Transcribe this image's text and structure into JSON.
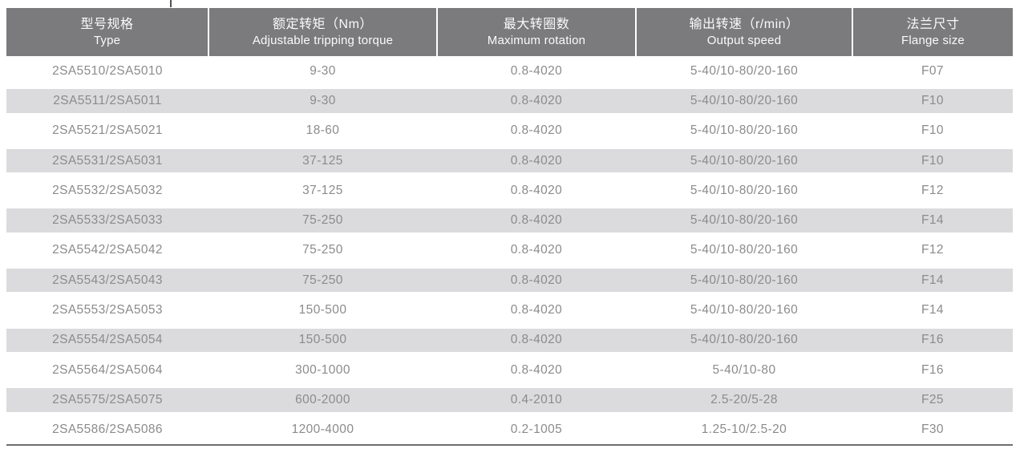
{
  "page": {
    "background": "#ffffff"
  },
  "artifact": {
    "description": "cropped remnant of text above table"
  },
  "table": {
    "columns": [
      {
        "key": "type",
        "zh": "型号规格",
        "en": "Type"
      },
      {
        "key": "torque",
        "zh": "额定转矩（Nm）",
        "en": "Adjustable tripping torque"
      },
      {
        "key": "rotation",
        "zh": "最大转圈数",
        "en": "Maximum rotation"
      },
      {
        "key": "speed",
        "zh": "输出转速（r/min）",
        "en": "Output speed"
      },
      {
        "key": "flange",
        "zh": "法兰尺寸",
        "en": "Flange size"
      }
    ],
    "rows": [
      [
        "2SA5510/2SA5010",
        "9-30",
        "0.8-4020",
        "5-40/10-80/20-160",
        "F07"
      ],
      [
        "2SA5511/2SA5011",
        "9-30",
        "0.8-4020",
        "5-40/10-80/20-160",
        "F10"
      ],
      [
        "2SA5521/2SA5021",
        "18-60",
        "0.8-4020",
        "5-40/10-80/20-160",
        "F10"
      ],
      [
        "2SA5531/2SA5031",
        "37-125",
        "0.8-4020",
        "5-40/10-80/20-160",
        "F10"
      ],
      [
        "2SA5532/2SA5032",
        "37-125",
        "0.8-4020",
        "5-40/10-80/20-160",
        "F12"
      ],
      [
        "2SA5533/2SA5033",
        "75-250",
        "0.8-4020",
        "5-40/10-80/20-160",
        "F14"
      ],
      [
        "2SA5542/2SA5042",
        "75-250",
        "0.8-4020",
        "5-40/10-80/20-160",
        "F12"
      ],
      [
        "2SA5543/2SA5043",
        "75-250",
        "0.8-4020",
        "5-40/10-80/20-160",
        "F14"
      ],
      [
        "2SA5553/2SA5053",
        "150-500",
        "0.8-4020",
        "5-40/10-80/20-160",
        "F14"
      ],
      [
        "2SA5554/2SA5054",
        "150-500",
        "0.8-4020",
        "5-40/10-80/20-160",
        "F16"
      ],
      [
        "2SA5564/2SA5064",
        "300-1000",
        "0.8-4020",
        "5-40/10-80",
        "F16"
      ],
      [
        "2SA5575/2SA5075",
        "600-2000",
        "0.4-2010",
        "2.5-20/5-28",
        "F25"
      ],
      [
        "2SA5586/2SA5086",
        "1200-4000",
        "0.2-1005",
        "1.25-10/2.5-20",
        "F30"
      ]
    ],
    "striped_row_indices": [
      1,
      3,
      5,
      7,
      9,
      11
    ],
    "colors": {
      "header_bg": "#7b7b7d",
      "header_text": "#fafafa",
      "row_stripe": "#dbdbdd",
      "body_text": "#8b8b8d",
      "bottom_rule": "#6f6f70"
    }
  }
}
